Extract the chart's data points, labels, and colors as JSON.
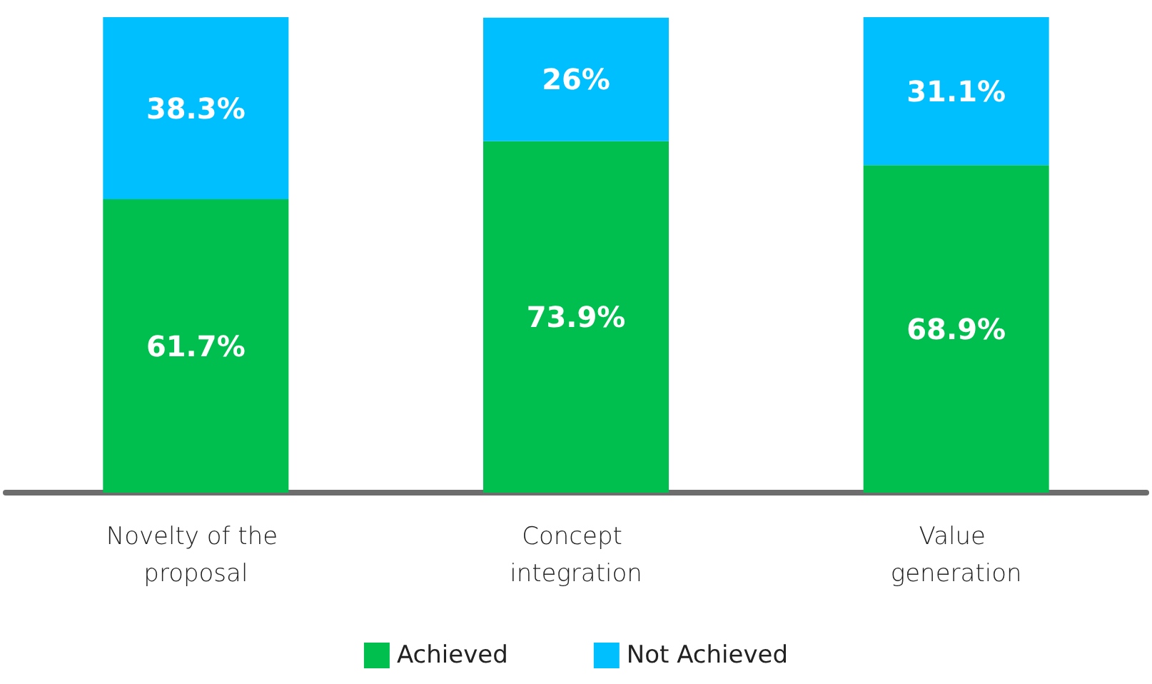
{
  "chart_data": {
    "type": "bar",
    "stacked": true,
    "categories": [
      "Novelty of the proposal",
      "Concept integration",
      "Value generation"
    ],
    "series": [
      {
        "name": "Achieved",
        "color": "#00bf4f",
        "values": [
          61.7,
          73.9,
          68.9
        ],
        "value_labels": [
          "61.7%",
          "73.9%",
          "68.9%"
        ]
      },
      {
        "name": "Not Achieved",
        "color": "#00bfff",
        "values": [
          38.3,
          26,
          31.1
        ],
        "value_labels": [
          "38.3%",
          "26%",
          "31.1%"
        ]
      }
    ],
    "legend": "bottom"
  }
}
